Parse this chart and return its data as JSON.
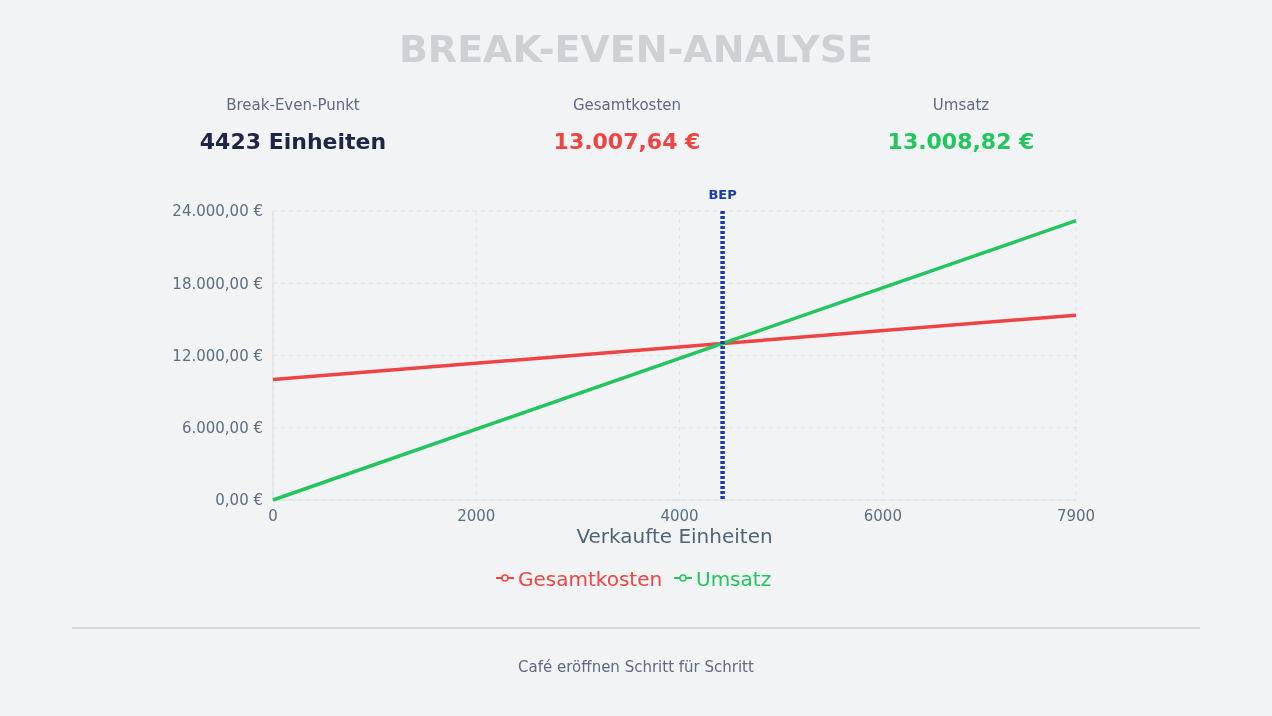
{
  "chart_data": {
    "type": "line",
    "title": "BREAK-EVEN-ANALYSE",
    "xlabel": "Verkaufte Einheiten",
    "x": [
      0,
      4423,
      7900
    ],
    "series": [
      {
        "name": "Gesamtkosten",
        "color": "#ef4444",
        "values": [
          10000,
          13000,
          15350
        ]
      },
      {
        "name": "Umsatz",
        "color": "#22c55e",
        "values": [
          0,
          13000,
          23200
        ]
      }
    ],
    "xlim": [
      0,
      7900
    ],
    "xticks": [
      0,
      2000,
      4000,
      6000,
      7900
    ],
    "ylim": [
      0,
      24000
    ],
    "yticks": [
      {
        "value": 0,
        "label": "0,00 €"
      },
      {
        "value": 6000,
        "label": "6.000,00 €"
      },
      {
        "value": 12000,
        "label": "12.000,00 €"
      },
      {
        "value": 18000,
        "label": "18.000,00 €"
      },
      {
        "value": 24000,
        "label": "24.000,00 €"
      }
    ],
    "grid": true,
    "legend": "bottom",
    "line_style": "solid",
    "ref_lines": [
      {
        "axis": "x",
        "value": 4423,
        "label": "BEP",
        "color": "#1e3aad",
        "line_style": "dotted"
      }
    ],
    "annotations": [
      "Break-Even-Punkt",
      "4423 Einheiten",
      "Gesamtkosten",
      "13.007,64 €",
      "Umsatz",
      "13.008,82 €",
      "Café eröffnen Schritt für Schritt"
    ]
  }
}
